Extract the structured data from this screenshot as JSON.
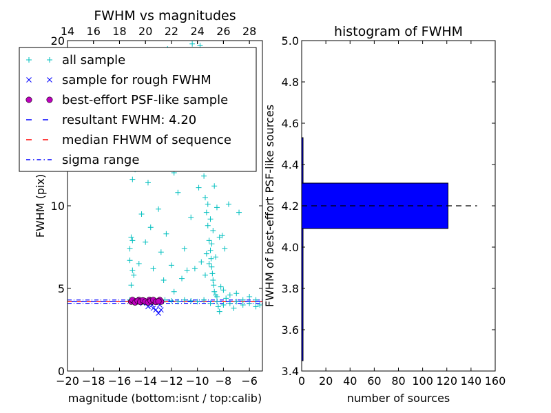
{
  "chart_data": [
    {
      "type": "scatter",
      "title": "FWHM vs magnitudes",
      "xlabel": "magnitude (bottom:isnt / top:calib)",
      "ylabel": "FWHM (pix)",
      "xlim": [
        -20,
        -5
      ],
      "ylim": [
        0,
        20
      ],
      "x_ticks": [
        -20,
        -18,
        -16,
        -14,
        -12,
        -10,
        -8,
        -6
      ],
      "x_tick_labels": [
        "−20",
        "−18",
        "−16",
        "−14",
        "−12",
        "−10",
        "−8",
        "−6"
      ],
      "y_ticks": [
        0,
        5,
        10
      ],
      "y_tick_labels": [
        "0",
        "5",
        "10"
      ],
      "top_axis": {
        "ticks": [
          14,
          16,
          18,
          20,
          22,
          24,
          26,
          28
        ],
        "tick_labels": [
          "14",
          "16",
          "18",
          "20",
          "22",
          "24",
          "26",
          "28"
        ],
        "offset": 34,
        "upper_limit_label": "20"
      },
      "legend": {
        "placement": "upper-left",
        "entries": [
          {
            "label": "all sample",
            "marker": "plus",
            "color": "#00bfbf"
          },
          {
            "label": "sample for rough FWHM",
            "marker": "x",
            "color": "#0000ff"
          },
          {
            "label": "best-effort PSF-like sample",
            "marker": "circle",
            "color": "#bf00bf"
          },
          {
            "label": "resultant FWHM: 4.20",
            "marker": "dash",
            "color": "#0000ff"
          },
          {
            "label": "median FHWM of sequence",
            "marker": "dash",
            "color": "#ff0000"
          },
          {
            "label": "sigma range",
            "marker": "dashdot",
            "color": "#0000ff"
          }
        ]
      },
      "resultant_fwhm": 4.2,
      "median_fwhm": 4.2,
      "sigma_range": [
        4.1,
        4.3
      ],
      "series": [
        {
          "name": "all sample",
          "points": [
            [
              -15.2,
              4.3
            ],
            [
              -15,
              4.25
            ],
            [
              -14.6,
              4.3
            ],
            [
              -14.2,
              4.2
            ],
            [
              -13.8,
              4.3
            ],
            [
              -13.4,
              4.25
            ],
            [
              -13,
              4.2
            ],
            [
              -12.5,
              4.3
            ],
            [
              -12,
              4.25
            ],
            [
              -11.5,
              4.2
            ],
            [
              -11,
              4.3
            ],
            [
              -10.5,
              4.25
            ],
            [
              -10,
              4.2
            ],
            [
              -9.5,
              4.3
            ],
            [
              -9,
              4.1
            ],
            [
              -8.5,
              4.2
            ],
            [
              -8,
              4.0
            ],
            [
              -7.5,
              4.1
            ],
            [
              -7,
              4.2
            ],
            [
              -6.5,
              4.0
            ],
            [
              -6,
              4.1
            ],
            [
              -5.5,
              4.3
            ],
            [
              -5.2,
              4.0
            ],
            [
              -15.1,
              5.2
            ],
            [
              -15,
              6.1
            ],
            [
              -15.2,
              7.4
            ],
            [
              -15.1,
              8.1
            ],
            [
              -14.9,
              5.8
            ],
            [
              -15,
              11.6
            ],
            [
              -14.8,
              12.2
            ],
            [
              -15.2,
              6.7
            ],
            [
              -15,
              7.9
            ],
            [
              -14.5,
              6.5
            ],
            [
              -14.3,
              9.5
            ],
            [
              -14,
              7.8
            ],
            [
              -13.8,
              11.4
            ],
            [
              -13.6,
              8.7
            ],
            [
              -13.4,
              6.2
            ],
            [
              -13.2,
              12.4
            ],
            [
              -13,
              9.8
            ],
            [
              -12.8,
              7.2
            ],
            [
              -12.6,
              5.5
            ],
            [
              -12.4,
              8.3
            ],
            [
              -12,
              6.4
            ],
            [
              -11.8,
              4.8
            ],
            [
              -11.5,
              10.8
            ],
            [
              -11.2,
              5.6
            ],
            [
              -11,
              7.4
            ],
            [
              -10.8,
              6.1
            ],
            [
              -10.6,
              12.5
            ],
            [
              -10.5,
              9.3
            ],
            [
              -10.4,
              15.5
            ],
            [
              -10.3,
              13.2
            ],
            [
              -10.2,
              17.4
            ],
            [
              -10,
              14.1
            ],
            [
              -9.8,
              19.7
            ],
            [
              -9.7,
              18.5
            ],
            [
              -9.6,
              16.2
            ],
            [
              -9.5,
              11.8
            ],
            [
              -9.4,
              10.5
            ],
            [
              -9.3,
              9.6
            ],
            [
              -9.2,
              8.8
            ],
            [
              -9.1,
              7.9
            ],
            [
              -9,
              7.3
            ],
            [
              -8.95,
              6.8
            ],
            [
              -8.9,
              6.3
            ],
            [
              -8.85,
              5.9
            ],
            [
              -8.8,
              5.5
            ],
            [
              -8.75,
              5.2
            ],
            [
              -8.7,
              4.8
            ],
            [
              -8.6,
              4.6
            ],
            [
              -8.5,
              4.5
            ],
            [
              -8.4,
              3.9
            ],
            [
              -8.3,
              3.6
            ],
            [
              -8.2,
              5.1
            ],
            [
              -8,
              4.9
            ],
            [
              -7.8,
              4.4
            ],
            [
              -7.5,
              4.6
            ],
            [
              -7.2,
              3.8
            ],
            [
              -7,
              4.7
            ],
            [
              -6.5,
              4.3
            ],
            [
              -6,
              4.5
            ],
            [
              -5.5,
              3.9
            ],
            [
              -9,
              9.2
            ],
            [
              -9.2,
              10.1
            ],
            [
              -8.8,
              8.5
            ],
            [
              -9.1,
              6.5
            ],
            [
              -9.3,
              7.1
            ],
            [
              -8.9,
              7.7
            ],
            [
              -9.4,
              5.8
            ],
            [
              -8.6,
              6.9
            ],
            [
              -9.6,
              12.9
            ],
            [
              -9.9,
              11.1
            ],
            [
              -9.35,
              14.5
            ],
            [
              -8.5,
              9.9
            ],
            [
              -8.3,
              8.1
            ],
            [
              -10.1,
              19.2
            ],
            [
              -10.4,
              19.8
            ],
            [
              -9.2,
              13.7
            ],
            [
              -8.7,
              11.2
            ],
            [
              -11.8,
              12
            ],
            [
              -12.2,
              16.5
            ],
            [
              -12.3,
              19.5
            ],
            [
              -13.1,
              13.6
            ],
            [
              -7.6,
              10.1
            ],
            [
              -6.8,
              9.6
            ],
            [
              -7.9,
              7.4
            ],
            [
              -8.1,
              8.2
            ],
            [
              -9.7,
              6.6
            ],
            [
              -10.2,
              6.2
            ]
          ]
        },
        {
          "name": "sample for rough FWHM",
          "points": [
            [
              -14.2,
              4.1
            ],
            [
              -13.8,
              3.9
            ],
            [
              -13.5,
              4.0
            ],
            [
              -13.2,
              3.7
            ],
            [
              -13,
              3.5
            ],
            [
              -12.8,
              3.7
            ],
            [
              -12.9,
              4.0
            ],
            [
              -13.4,
              3.8
            ],
            [
              -14.6,
              4.2
            ],
            [
              -13.6,
              4.15
            ]
          ]
        },
        {
          "name": "best-effort PSF-like sample",
          "points": [
            [
              -15.1,
              4.2
            ],
            [
              -14.9,
              4.25
            ],
            [
              -14.7,
              4.2
            ],
            [
              -14.5,
              4.3
            ],
            [
              -14.3,
              4.2
            ],
            [
              -14.1,
              4.25
            ],
            [
              -13.9,
              4.2
            ],
            [
              -13.7,
              4.3
            ],
            [
              -13.5,
              4.2
            ],
            [
              -13.3,
              4.25
            ],
            [
              -13.1,
              4.2
            ],
            [
              -12.9,
              4.3
            ],
            [
              -12.8,
              4.2
            ],
            [
              -15,
              4.3
            ],
            [
              -14.8,
              4.15
            ],
            [
              -14.6,
              4.25
            ],
            [
              -14.4,
              4.18
            ],
            [
              -14.2,
              4.28
            ],
            [
              -14,
              4.2
            ],
            [
              -13.8,
              4.15
            ],
            [
              -13.6,
              4.25
            ],
            [
              -13.4,
              4.3
            ],
            [
              -13.2,
              4.18
            ],
            [
              -13,
              4.22
            ]
          ]
        }
      ]
    },
    {
      "type": "bar",
      "orientation": "horizontal",
      "title": "histogram of FWHM",
      "xlabel": "number of sources",
      "ylabel": "FWHM of best-effort PSF-like sources",
      "xlim": [
        0,
        160
      ],
      "ylim": [
        3.4,
        5.0
      ],
      "x_ticks": [
        0,
        20,
        40,
        60,
        80,
        100,
        120,
        140,
        160
      ],
      "x_tick_labels": [
        "0",
        "20",
        "40",
        "60",
        "80",
        "100",
        "120",
        "140",
        "160"
      ],
      "y_ticks": [
        3.4,
        3.6,
        3.8,
        4.0,
        4.2,
        4.4,
        4.6,
        4.8,
        5.0
      ],
      "y_tick_labels": [
        "3.4",
        "3.6",
        "3.8",
        "4.0",
        "4.2",
        "4.4",
        "4.6",
        "4.8",
        "5.0"
      ],
      "bars": [
        {
          "range": [
            3.45,
            4.09
          ],
          "count": 1
        },
        {
          "range": [
            4.09,
            4.31
          ],
          "count": 121
        },
        {
          "range": [
            4.31,
            4.53
          ],
          "count": 1
        }
      ],
      "bar_color": "#0000ff",
      "reference_line": {
        "y": 4.2,
        "x_range": [
          0,
          145
        ],
        "style": "dashed",
        "color": "#000000"
      }
    }
  ]
}
